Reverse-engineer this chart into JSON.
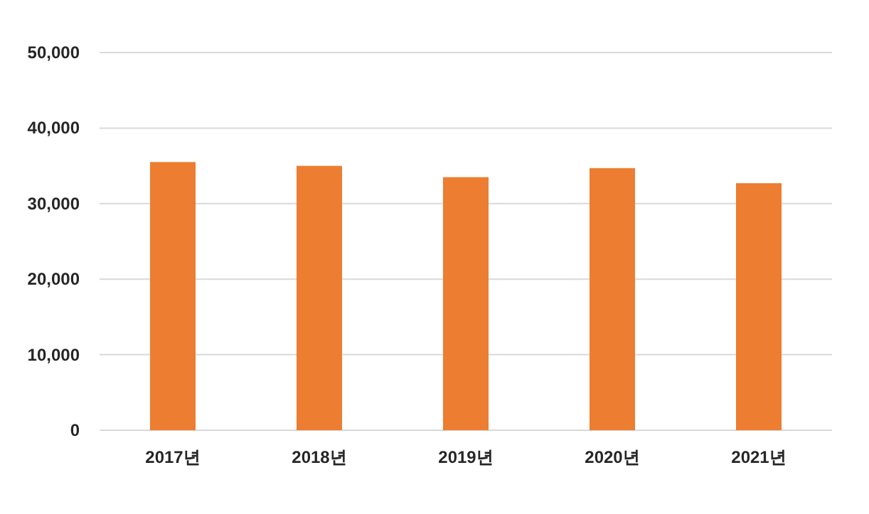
{
  "chart_data": {
    "type": "bar",
    "categories": [
      "2017년",
      "2018년",
      "2019년",
      "2020년",
      "2021년"
    ],
    "values": [
      35500,
      35000,
      33500,
      34700,
      32700
    ],
    "color": "#ed7d31",
    "ylim": [
      0,
      50000
    ],
    "yticks": [
      {
        "value": 0,
        "label": "0"
      },
      {
        "value": 10000,
        "label": "10,000"
      },
      {
        "value": 20000,
        "label": "20,000"
      },
      {
        "value": 30000,
        "label": "30,000"
      },
      {
        "value": 40000,
        "label": "40,000"
      },
      {
        "value": 50000,
        "label": "50,000"
      }
    ],
    "grid": "y"
  }
}
